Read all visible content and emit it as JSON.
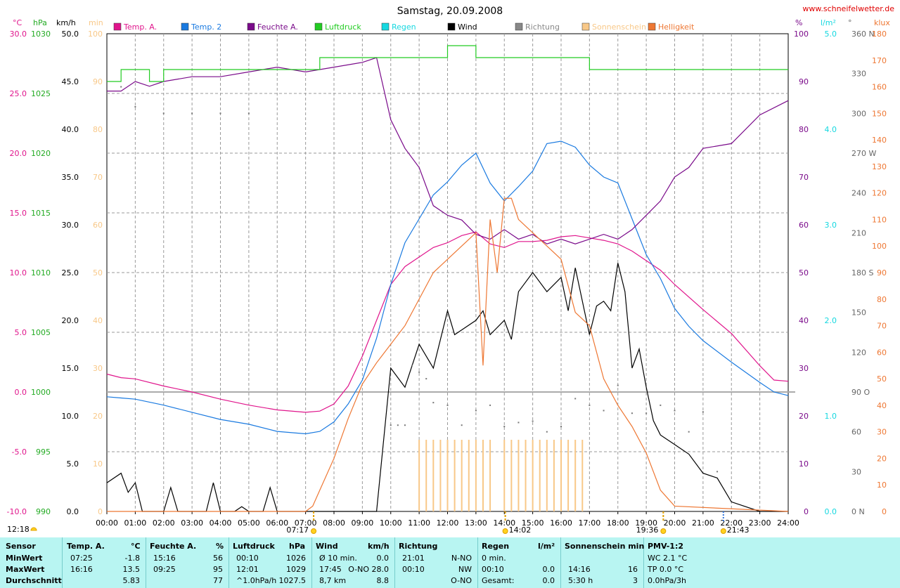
{
  "site": "www.schneifelwetter.de",
  "chart_data": {
    "type": "line",
    "title": "Samstag, 20.09.2008",
    "x_range": [
      "00:00",
      "24:00"
    ],
    "x_ticks": [
      "00:00",
      "01:00",
      "02:00",
      "03:00",
      "04:00",
      "05:00",
      "06:00",
      "07:00",
      "08:00",
      "09:00",
      "10:00",
      "11:00",
      "12:00",
      "13:00",
      "14:00",
      "15:00",
      "16:00",
      "17:00",
      "18:00",
      "19:00",
      "20:00",
      "21:00",
      "22:00",
      "23:00",
      "24:00"
    ],
    "legend": [
      {
        "name": "Temp. A.",
        "color": "#e0158c"
      },
      {
        "name": "Temp. 2",
        "color": "#1a7ae0"
      },
      {
        "name": "Feuchte A.",
        "color": "#7a0a8a"
      },
      {
        "name": "Luftdruck",
        "color": "#22cc22"
      },
      {
        "name": "Regen",
        "color": "#16d8e0"
      },
      {
        "name": "Wind",
        "color": "#000000"
      },
      {
        "name": "Richtung",
        "color": "#888888"
      },
      {
        "name": "Sonnenschein",
        "color": "#f8c888"
      },
      {
        "name": "Helligkeit",
        "color": "#ee7733"
      }
    ],
    "axes": {
      "temp": {
        "unit": "°C",
        "range": [
          -10,
          30
        ],
        "ticks": [
          "30.0",
          "25.0",
          "20.0",
          "15.0",
          "10.0",
          "5.0",
          "0.0",
          "-5.0",
          "-10.0"
        ],
        "color": "#e0158c"
      },
      "pressure": {
        "unit": "hPa",
        "range": [
          990,
          1030
        ],
        "ticks": [
          "1030",
          "1025",
          "1020",
          "1015",
          "1010",
          "1005",
          "1000",
          "995",
          "990"
        ],
        "color": "#22aa22"
      },
      "wind": {
        "unit": "km/h",
        "range": [
          0,
          50
        ],
        "ticks": [
          "50.0",
          "45.0",
          "40.0",
          "35.0",
          "30.0",
          "25.0",
          "20.0",
          "15.0",
          "10.0",
          "5.0",
          "0.0"
        ],
        "color": "#000000"
      },
      "sunshine": {
        "unit": "min",
        "range": [
          0,
          100
        ],
        "ticks": [
          "100",
          "90",
          "80",
          "70",
          "60",
          "50",
          "40",
          "30",
          "20",
          "10",
          "0"
        ],
        "color": "#f8c888"
      },
      "humidity": {
        "unit": "%",
        "range": [
          0,
          100
        ],
        "ticks": [
          "100",
          "90",
          "80",
          "70",
          "60",
          "50",
          "40",
          "30",
          "20",
          "10",
          "0"
        ],
        "color": "#7a0a8a"
      },
      "rain": {
        "unit": "l/m²",
        "range": [
          0,
          5
        ],
        "ticks": [
          "5.0",
          "4.0",
          "3.0",
          "2.0",
          "1.0",
          "0.0"
        ],
        "color": "#16d8e0"
      },
      "direction": {
        "unit": "°",
        "range": [
          0,
          360
        ],
        "ticks": [
          "360 N",
          "330",
          "300",
          "270 W",
          "240",
          "210",
          "180 S",
          "150",
          "120",
          "90 O",
          "60",
          "30",
          "0 N"
        ],
        "color": "#666666"
      },
      "brightness": {
        "unit": "klux",
        "range": [
          0,
          180
        ],
        "ticks": [
          "180",
          "170",
          "160",
          "150",
          "140",
          "130",
          "120",
          "110",
          "100",
          "90",
          "80",
          "70",
          "60",
          "50",
          "40",
          "30",
          "20",
          "10",
          "0"
        ],
        "color": "#ee7733"
      }
    },
    "series": [
      {
        "name": "Temp. A.",
        "axis": "temp",
        "x": [
          0,
          0.5,
          1,
          2,
          3,
          4,
          5,
          6,
          7,
          7.5,
          8,
          8.5,
          9,
          9.5,
          10,
          10.5,
          11,
          11.5,
          12,
          12.5,
          13,
          13.5,
          14,
          14.5,
          15,
          15.5,
          16,
          16.5,
          17,
          17.5,
          18,
          18.5,
          19,
          19.5,
          20,
          21,
          22,
          23,
          23.5,
          24
        ],
        "values": [
          1.5,
          1.2,
          1.1,
          0.5,
          0.0,
          -0.6,
          -1.1,
          -1.5,
          -1.7,
          -1.6,
          -1.0,
          0.5,
          3.0,
          6.0,
          9.0,
          10.5,
          11.3,
          12.1,
          12.5,
          13.1,
          13.4,
          12.4,
          12.1,
          12.6,
          12.6,
          12.7,
          13.0,
          13.1,
          12.9,
          12.7,
          12.4,
          11.8,
          11.0,
          10.2,
          9.0,
          6.9,
          4.9,
          2.2,
          1.0,
          0.9
        ]
      },
      {
        "name": "Temp. 2",
        "axis": "temp",
        "x": [
          0,
          0.5,
          1,
          2,
          3,
          4,
          5,
          6,
          7,
          7.5,
          8,
          8.5,
          9,
          9.5,
          10,
          10.5,
          11,
          11.5,
          12,
          12.5,
          13,
          13.5,
          14,
          14.5,
          15,
          15.5,
          16,
          16.5,
          17,
          17.5,
          18,
          18.5,
          19,
          19.5,
          20,
          20.5,
          21,
          22,
          23,
          23.5,
          24
        ],
        "values": [
          -0.4,
          -0.5,
          -0.6,
          -1.1,
          -1.7,
          -2.3,
          -2.7,
          -3.3,
          -3.5,
          -3.3,
          -2.5,
          -1.0,
          1.0,
          4.5,
          9.0,
          12.5,
          14.5,
          16.5,
          17.6,
          19.0,
          20.0,
          17.5,
          16.0,
          17.2,
          18.5,
          20.8,
          21.0,
          20.5,
          19.0,
          18.0,
          17.5,
          14.5,
          11.5,
          9.5,
          7.0,
          5.5,
          4.3,
          2.5,
          0.8,
          0.0,
          -0.3
        ]
      },
      {
        "name": "Feuchte A.",
        "axis": "humidity",
        "x": [
          0,
          0.5,
          1,
          1.5,
          2,
          3,
          4,
          5,
          6,
          7,
          8,
          9,
          9.5,
          10,
          10.5,
          11,
          11.5,
          12,
          12.5,
          13,
          13.5,
          14,
          14.5,
          15,
          15.5,
          16,
          16.5,
          17,
          17.5,
          18,
          18.5,
          19,
          19.5,
          20,
          20.5,
          21,
          22,
          23,
          24
        ],
        "values": [
          88,
          88,
          90,
          89,
          90,
          91,
          91,
          92,
          93,
          92,
          93,
          94,
          95,
          82,
          76,
          72,
          64,
          62,
          61,
          58,
          57,
          59,
          57,
          58,
          56,
          57,
          56,
          57,
          58,
          57,
          59,
          62,
          65,
          70,
          72,
          76,
          77,
          83,
          86
        ]
      },
      {
        "name": "Luftdruck",
        "axis": "pressure",
        "x": [
          0,
          0.5,
          1,
          1.5,
          2,
          3,
          4,
          5,
          6,
          7,
          7.5,
          8,
          9,
          10,
          11,
          12,
          12.5,
          13,
          14,
          15,
          16,
          17,
          18,
          19,
          20,
          21,
          22,
          23,
          24
        ],
        "values": [
          1026,
          1027,
          1027,
          1026,
          1027,
          1027,
          1027,
          1027,
          1027,
          1027,
          1028,
          1028,
          1028,
          1028,
          1028,
          1029,
          1029,
          1028,
          1028,
          1028,
          1028,
          1027,
          1027,
          1027,
          1027,
          1027,
          1027,
          1027,
          1027
        ]
      },
      {
        "name": "Wind",
        "axis": "wind",
        "x": [
          0,
          0.5,
          0.75,
          1,
          1.25,
          2,
          2.25,
          2.5,
          3,
          3.5,
          3.75,
          4,
          4.5,
          4.75,
          5,
          5.5,
          5.75,
          6,
          9.5,
          10,
          10.5,
          11,
          11.5,
          12,
          12.25,
          12.5,
          13,
          13.25,
          13.5,
          14,
          14.25,
          14.5,
          15,
          15.5,
          16,
          16.25,
          16.5,
          17,
          17.25,
          17.5,
          17.75,
          18,
          18.25,
          18.5,
          18.75,
          19,
          19.25,
          19.5,
          19.75,
          20,
          20.5,
          21,
          21.5,
          22,
          23,
          24
        ],
        "values": [
          3,
          4,
          2,
          3,
          0,
          0,
          2.5,
          0,
          0,
          0,
          3,
          0,
          0,
          0.5,
          0,
          0,
          2.5,
          0,
          0,
          15,
          13,
          17.5,
          15,
          21,
          18.5,
          19,
          20,
          21,
          18.5,
          20,
          18,
          23,
          25,
          23,
          24.5,
          21,
          25.5,
          18.5,
          21.5,
          22,
          21,
          26,
          23,
          15,
          17,
          13,
          9.5,
          8,
          7.5,
          7,
          6,
          4,
          3.5,
          1,
          0,
          0
        ]
      },
      {
        "name": "Helligkeit",
        "axis": "brightness",
        "x": [
          0,
          7,
          7.25,
          7.5,
          8,
          8.5,
          9,
          9.5,
          10,
          10.5,
          11,
          11.5,
          12,
          12.5,
          13,
          13.25,
          13.5,
          13.75,
          14,
          14.25,
          14.5,
          15,
          15.5,
          16,
          16.5,
          17,
          17.5,
          18,
          18.5,
          19,
          19.5,
          20,
          24
        ],
        "values": [
          0,
          0,
          2,
          8,
          20,
          35,
          48,
          56,
          63,
          70,
          80,
          90,
          95,
          100,
          105,
          55,
          110,
          90,
          118,
          118,
          110,
          105,
          100,
          95,
          75,
          70,
          50,
          40,
          32,
          22,
          8,
          2,
          0
        ]
      },
      {
        "name": "Sonnenschein",
        "axis": "sunshine",
        "x": [
          11,
          11.25,
          11.5,
          11.75,
          12,
          12.25,
          12.5,
          12.75,
          13,
          13.25,
          13.5,
          14,
          14.25,
          14.5,
          14.75,
          15,
          15.25,
          15.5,
          15.75,
          16,
          16.25,
          16.5,
          16.75
        ],
        "values": [
          15,
          15,
          15,
          15,
          15,
          15,
          15,
          15,
          15,
          15,
          15,
          15,
          15,
          15,
          15,
          15,
          15,
          15,
          15,
          15,
          15,
          15,
          15
        ]
      },
      {
        "name": "Richtung",
        "axis": "direction",
        "x": [
          0.5,
          1,
          2,
          3,
          4,
          5,
          10,
          10.25,
          10.5,
          10.75,
          11,
          11.25,
          11.5,
          12,
          12.5,
          13,
          13.5,
          14,
          14.5,
          15,
          15.5,
          16,
          16.5,
          17,
          17.5,
          18,
          18.5,
          19,
          19.5,
          20,
          20.5,
          21,
          21.5
        ],
        "values": [
          320,
          305,
          300,
          300,
          300,
          300,
          65,
          65,
          65,
          110,
          105,
          100,
          82,
          80,
          65,
          76,
          80,
          64,
          67,
          68,
          60,
          64,
          85,
          80,
          76,
          95,
          74,
          74,
          80,
          76,
          60,
          75,
          30
        ]
      }
    ],
    "sun_markers": {
      "sunrise": "07:17",
      "noon": "14:02",
      "sunset": "19:36",
      "moon": "21:43",
      "left_moon": "12:18"
    }
  },
  "stats": {
    "headers": {
      "sensor": "Sensor",
      "temp": "Temp. A.",
      "temp_unit": "°C",
      "feuchte": "Feuchte A.",
      "feuchte_unit": "%",
      "luftdruck": "Luftdruck",
      "luftdruck_unit": "hPa",
      "wind": "Wind",
      "wind_unit": "km/h",
      "richtung": "Richtung",
      "regen": "Regen",
      "regen_unit": "l/m²",
      "sonne": "Sonnenschein min",
      "pmv": "PMV-1:2"
    },
    "rows": [
      {
        "label": "MinWert",
        "temp_time": "07:25",
        "temp_val": "-1.8",
        "feuchte_time": "15:16",
        "feuchte_val": "56",
        "luft_time": "00:10",
        "luft_val": "1026",
        "wind_time": "Ø 10 min.",
        "wind_val": "0.0",
        "richtung_time": "21:01",
        "richtung_val": "N-NO",
        "regen_time": "0 min.",
        "regen_val": "",
        "sonne_time": "",
        "sonne_val": "",
        "pmv": "WC 2.1 °C"
      },
      {
        "label": "MaxWert",
        "temp_time": "16:16",
        "temp_val": "13.5",
        "feuchte_time": "09:25",
        "feuchte_val": "95",
        "luft_time": "12:01",
        "luft_val": "1029",
        "wind_time": "17:45",
        "wind_val": "O-NO 28.0",
        "richtung_time": "00:10",
        "richtung_val": "NW",
        "regen_time": "00:10",
        "regen_val": "0.0",
        "sonne_time": "14:16",
        "sonne_val": "16",
        "pmv": "TP 0.0 °C"
      },
      {
        "label": "Durchschnitt",
        "temp_time": "",
        "temp_val": "5.83",
        "feuchte_time": "",
        "feuchte_val": "77",
        "luft_time": "^1.0hPa/h",
        "luft_val": "1027.5",
        "wind_time": "8,7 km",
        "wind_val": "8.8",
        "richtung_time": "",
        "richtung_val": "O-NO",
        "regen_time": "Gesamt:",
        "regen_val": "0.0",
        "sonne_time": "5:30 h",
        "sonne_val": "3",
        "pmv": "0.0hPa/3h"
      }
    ]
  }
}
